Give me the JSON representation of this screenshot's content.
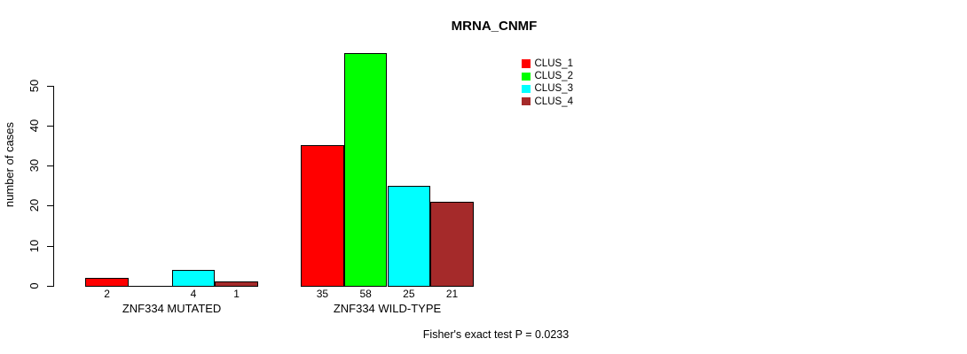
{
  "chart_data": {
    "type": "bar",
    "title": "MRNA_CNMF",
    "xlabel": "",
    "ylabel": "number of cases",
    "ylim": [
      0,
      58
    ],
    "yticks": [
      0,
      10,
      20,
      30,
      40,
      50
    ],
    "grid": false,
    "legend_position": "top-right",
    "categories": [
      "ZNF334 MUTATED",
      "ZNF334 WILD-TYPE"
    ],
    "series": [
      {
        "name": "CLUS_1",
        "color": "#FF0000",
        "values": [
          2,
          35
        ]
      },
      {
        "name": "CLUS_2",
        "color": "#00FF00",
        "values": [
          0,
          58
        ]
      },
      {
        "name": "CLUS_3",
        "color": "#00FFFF",
        "values": [
          4,
          25
        ]
      },
      {
        "name": "CLUS_4",
        "color": "#A52A2A",
        "values": [
          1,
          21
        ]
      }
    ],
    "bar_value_labels": [
      [
        "2",
        "",
        "4",
        "1"
      ],
      [
        "35",
        "58",
        "25",
        "21"
      ]
    ],
    "annotation": "Fisher's exact test P = 0.0233"
  }
}
